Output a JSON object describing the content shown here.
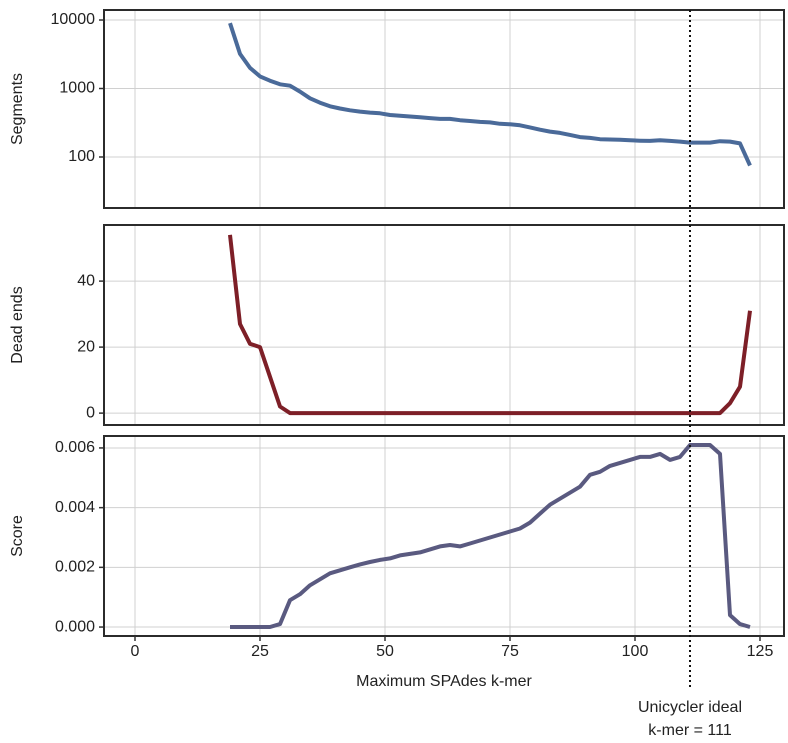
{
  "chart_data": [
    {
      "type": "line",
      "ylabel": "Segments",
      "log_y": true,
      "grid": true,
      "x": [
        19,
        21,
        23,
        25,
        27,
        29,
        31,
        33,
        35,
        37,
        39,
        41,
        43,
        45,
        47,
        49,
        51,
        53,
        55,
        57,
        59,
        61,
        63,
        65,
        67,
        69,
        71,
        73,
        75,
        77,
        79,
        81,
        83,
        85,
        87,
        89,
        91,
        93,
        95,
        97,
        99,
        101,
        103,
        105,
        107,
        109,
        111,
        113,
        115,
        117,
        119,
        121,
        123
      ],
      "series": [
        {
          "color": "#4a6a99",
          "values": [
            9000,
            3200,
            2000,
            1500,
            1300,
            1150,
            1100,
            900,
            720,
            620,
            550,
            510,
            480,
            460,
            445,
            435,
            410,
            400,
            390,
            380,
            370,
            360,
            360,
            345,
            335,
            325,
            320,
            305,
            300,
            290,
            270,
            250,
            235,
            225,
            210,
            195,
            190,
            182,
            180,
            178,
            175,
            173,
            172,
            175,
            172,
            168,
            162,
            162,
            162,
            170,
            168,
            158,
            75
          ]
        }
      ],
      "xlim": [
        -6.2,
        129.8
      ],
      "ylim": [
        18,
        14000
      ],
      "yticks": [
        100,
        1000,
        10000
      ]
    },
    {
      "type": "line",
      "ylabel": "Dead ends",
      "grid": true,
      "x": [
        19,
        21,
        23,
        25,
        27,
        29,
        31,
        33,
        35,
        37,
        39,
        41,
        43,
        45,
        47,
        49,
        51,
        53,
        55,
        57,
        59,
        61,
        63,
        65,
        67,
        69,
        71,
        73,
        75,
        77,
        79,
        81,
        83,
        85,
        87,
        89,
        91,
        93,
        95,
        97,
        99,
        101,
        103,
        105,
        107,
        109,
        111,
        113,
        115,
        117,
        119,
        121,
        123
      ],
      "series": [
        {
          "color": "#7d1f27",
          "values": [
            54,
            27,
            21,
            20,
            11,
            2,
            0,
            0,
            0,
            0,
            0,
            0,
            0,
            0,
            0,
            0,
            0,
            0,
            0,
            0,
            0,
            0,
            0,
            0,
            0,
            0,
            0,
            0,
            0,
            0,
            0,
            0,
            0,
            0,
            0,
            0,
            0,
            0,
            0,
            0,
            0,
            0,
            0,
            0,
            0,
            0,
            0,
            0,
            0,
            0,
            3,
            8,
            31
          ]
        }
      ],
      "xlim": [
        -6.2,
        129.8
      ],
      "ylim": [
        -3.6,
        57
      ],
      "yticks": [
        0,
        20,
        40
      ]
    },
    {
      "type": "line",
      "ylabel": "Score",
      "xlabel": "Maximum SPAdes k-mer",
      "grid": true,
      "x": [
        19,
        21,
        23,
        25,
        27,
        29,
        31,
        33,
        35,
        37,
        39,
        41,
        43,
        45,
        47,
        49,
        51,
        53,
        55,
        57,
        59,
        61,
        63,
        65,
        67,
        69,
        71,
        73,
        75,
        77,
        79,
        81,
        83,
        85,
        87,
        89,
        91,
        93,
        95,
        97,
        99,
        101,
        103,
        105,
        107,
        109,
        111,
        113,
        115,
        117,
        119,
        121,
        123
      ],
      "series": [
        {
          "color": "#5a5a80",
          "values": [
            0,
            0,
            0,
            0,
            0,
            0.0001,
            0.0009,
            0.0011,
            0.0014,
            0.0016,
            0.0018,
            0.0019,
            0.002,
            0.0021,
            0.00218,
            0.00225,
            0.0023,
            0.0024,
            0.00245,
            0.0025,
            0.0026,
            0.0027,
            0.00275,
            0.0027,
            0.0028,
            0.0029,
            0.003,
            0.0031,
            0.0032,
            0.0033,
            0.0035,
            0.0038,
            0.0041,
            0.0043,
            0.0045,
            0.0047,
            0.0051,
            0.0052,
            0.0054,
            0.0055,
            0.0056,
            0.0057,
            0.0057,
            0.0058,
            0.0056,
            0.0057,
            0.0061,
            0.0061,
            0.0061,
            0.0058,
            0.0004,
            0.0001,
            0
          ]
        }
      ],
      "xlim": [
        -6.2,
        129.8
      ],
      "ylim": [
        -0.0003,
        0.0064
      ],
      "yticks": [
        {
          "value": 0,
          "label": "0.000"
        },
        {
          "value": 0.002,
          "label": "0.002"
        },
        {
          "value": 0.004,
          "label": "0.004"
        },
        {
          "value": 0.006,
          "label": "0.006"
        }
      ],
      "xticks": [
        0,
        25,
        50,
        75,
        100,
        125
      ],
      "annotation": {
        "x": 111,
        "lines": [
          "Unicycler ideal",
          "k-mer = 111"
        ]
      }
    }
  ]
}
